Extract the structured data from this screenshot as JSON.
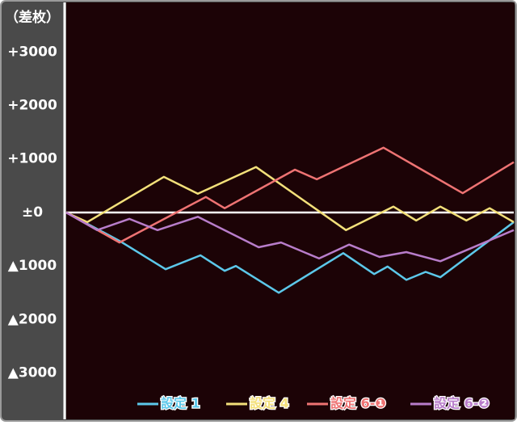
{
  "chart_data": {
    "type": "line",
    "title": "（差枚）",
    "xlim": [
      0,
      100
    ],
    "ylim": [
      -3820,
      3910
    ],
    "yticks": [
      {
        "value": 3000,
        "label": "+3000"
      },
      {
        "value": 2000,
        "label": "+2000"
      },
      {
        "value": 1000,
        "label": "+1000"
      },
      {
        "value": 0,
        "label": "±0"
      },
      {
        "value": -1000,
        "label": "▲1000"
      },
      {
        "value": -2000,
        "label": "▲2000"
      },
      {
        "value": -3000,
        "label": "▲3000"
      }
    ],
    "zero_line": true,
    "legend": "bottom-right",
    "series": [
      {
        "name": "設定 1",
        "color": "#5cc8ea",
        "x": [
          0,
          11.9,
          22.2,
          30.0,
          35.4,
          37.9,
          47.5,
          61.9,
          68.8,
          71.8,
          76.0,
          80.3,
          83.6,
          100
        ],
        "values": [
          0,
          -530,
          -1060,
          -800,
          -1090,
          -1000,
          -1500,
          -760,
          -1150,
          -1010,
          -1260,
          -1110,
          -1210,
          -180
        ]
      },
      {
        "name": "設定 4",
        "color": "#f3e07a",
        "x": [
          0,
          4.7,
          21.8,
          29.4,
          42.4,
          62.5,
          73.1,
          78.2,
          83.6,
          89.4,
          94.6,
          100
        ],
        "values": [
          0,
          -180,
          665,
          350,
          850,
          -330,
          110,
          -150,
          110,
          -150,
          80,
          -180
        ]
      },
      {
        "name": "設定 6-❶",
        "color": "#ee7373",
        "x": [
          0,
          11.9,
          31.2,
          35.4,
          51.1,
          56.0,
          70.9,
          88.6,
          100
        ],
        "values": [
          0,
          -560,
          290,
          80,
          800,
          620,
          1210,
          360,
          940
        ]
      },
      {
        "name": "設定 6-❷",
        "color": "#b87dca",
        "x": [
          0,
          6.9,
          14.1,
          20.4,
          29.4,
          43.0,
          48.0,
          56.5,
          63.2,
          70.0,
          76.0,
          83.6,
          100
        ],
        "values": [
          0,
          -330,
          -120,
          -330,
          -80,
          -650,
          -560,
          -860,
          -600,
          -830,
          -740,
          -910,
          -330
        ]
      }
    ]
  }
}
